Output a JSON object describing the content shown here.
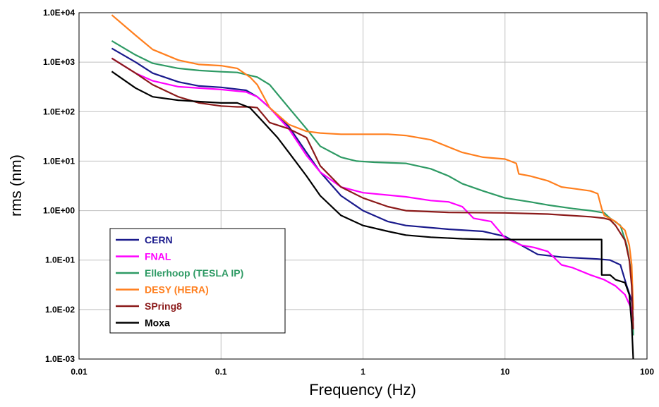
{
  "chart_data": {
    "type": "line",
    "title": "",
    "xlabel": "Frequency (Hz)",
    "ylabel": "rms (nm)",
    "x_scale": "log",
    "y_scale": "log",
    "xlim": [
      0.01,
      100
    ],
    "ylim": [
      0.001,
      10000
    ],
    "grid": true,
    "legend_position": "bottom-left",
    "x_ticks": [
      "0.01",
      "0.1",
      "1",
      "10",
      "100"
    ],
    "y_ticks": [
      "1.0E-03",
      "1.0E-02",
      "1.0E-01",
      "1.0E+00",
      "1.0E+01",
      "1.0E+02",
      "1.0E+03",
      "1.0E+04"
    ],
    "series": [
      {
        "name": "CERN",
        "color": "#1a1a8c",
        "label_color": "#1a1a8c",
        "points": [
          [
            0.017,
            1900
          ],
          [
            0.025,
            1000
          ],
          [
            0.033,
            600
          ],
          [
            0.05,
            400
          ],
          [
            0.07,
            330
          ],
          [
            0.1,
            310
          ],
          [
            0.15,
            270
          ],
          [
            0.18,
            200
          ],
          [
            0.22,
            120
          ],
          [
            0.3,
            50
          ],
          [
            0.4,
            15
          ],
          [
            0.5,
            6
          ],
          [
            0.7,
            2
          ],
          [
            1.0,
            1.0
          ],
          [
            1.5,
            0.6
          ],
          [
            2,
            0.5
          ],
          [
            4,
            0.42
          ],
          [
            7,
            0.38
          ],
          [
            10,
            0.3
          ],
          [
            13,
            0.2
          ],
          [
            17,
            0.13
          ],
          [
            25,
            0.115
          ],
          [
            45,
            0.105
          ],
          [
            55,
            0.1
          ],
          [
            65,
            0.08
          ],
          [
            72,
            0.03
          ],
          [
            78,
            0.015
          ],
          [
            80,
            0.006
          ]
        ]
      },
      {
        "name": "FNAL",
        "color": "#ff00ff",
        "label_color": "#ff00ff",
        "points": [
          [
            0.017,
            1200
          ],
          [
            0.025,
            600
          ],
          [
            0.033,
            420
          ],
          [
            0.05,
            320
          ],
          [
            0.1,
            280
          ],
          [
            0.15,
            250
          ],
          [
            0.18,
            200
          ],
          [
            0.22,
            120
          ],
          [
            0.3,
            45
          ],
          [
            0.4,
            13
          ],
          [
            0.5,
            6
          ],
          [
            0.7,
            3
          ],
          [
            1.0,
            2.3
          ],
          [
            2,
            1.9
          ],
          [
            3,
            1.6
          ],
          [
            4,
            1.5
          ],
          [
            5,
            1.2
          ],
          [
            6,
            0.7
          ],
          [
            8,
            0.6
          ],
          [
            10,
            0.28
          ],
          [
            13,
            0.2
          ],
          [
            16,
            0.18
          ],
          [
            20,
            0.15
          ],
          [
            25,
            0.08
          ],
          [
            30,
            0.07
          ],
          [
            40,
            0.05
          ],
          [
            50,
            0.04
          ],
          [
            60,
            0.03
          ],
          [
            70,
            0.02
          ],
          [
            78,
            0.01
          ],
          [
            80,
            0.006
          ]
        ]
      },
      {
        "name": "Ellerhoop (TESLA IP)",
        "color": "#2e9a64",
        "label_color": "#2e9a64",
        "points": [
          [
            0.017,
            2700
          ],
          [
            0.025,
            1400
          ],
          [
            0.033,
            950
          ],
          [
            0.05,
            750
          ],
          [
            0.07,
            680
          ],
          [
            0.1,
            640
          ],
          [
            0.13,
            620
          ],
          [
            0.18,
            500
          ],
          [
            0.22,
            350
          ],
          [
            0.3,
            120
          ],
          [
            0.4,
            45
          ],
          [
            0.5,
            20
          ],
          [
            0.7,
            12
          ],
          [
            0.9,
            10
          ],
          [
            1.2,
            9.5
          ],
          [
            2,
            9
          ],
          [
            3,
            7
          ],
          [
            4,
            5
          ],
          [
            5,
            3.5
          ],
          [
            7,
            2.5
          ],
          [
            10,
            1.8
          ],
          [
            15,
            1.5
          ],
          [
            20,
            1.3
          ],
          [
            30,
            1.1
          ],
          [
            40,
            1.0
          ],
          [
            50,
            0.9
          ],
          [
            55,
            0.7
          ],
          [
            65,
            0.5
          ],
          [
            72,
            0.2
          ],
          [
            78,
            0.05
          ],
          [
            80,
            0.003
          ]
        ]
      },
      {
        "name": "DESY (HERA)",
        "color": "#ff7f1e",
        "label_color": "#ff7f1e",
        "points": [
          [
            0.017,
            9000
          ],
          [
            0.025,
            3500
          ],
          [
            0.033,
            1800
          ],
          [
            0.05,
            1100
          ],
          [
            0.07,
            900
          ],
          [
            0.1,
            850
          ],
          [
            0.13,
            750
          ],
          [
            0.16,
            500
          ],
          [
            0.18,
            350
          ],
          [
            0.22,
            120
          ],
          [
            0.3,
            55
          ],
          [
            0.4,
            40
          ],
          [
            0.5,
            37
          ],
          [
            0.7,
            35
          ],
          [
            1.0,
            35
          ],
          [
            1.5,
            35
          ],
          [
            2,
            33
          ],
          [
            3,
            27
          ],
          [
            5,
            15
          ],
          [
            7,
            12
          ],
          [
            10,
            11
          ],
          [
            12,
            9
          ],
          [
            12.5,
            5.5
          ],
          [
            15,
            5
          ],
          [
            20,
            4
          ],
          [
            25,
            3
          ],
          [
            30,
            2.8
          ],
          [
            40,
            2.5
          ],
          [
            45,
            2.2
          ],
          [
            48,
            1.1
          ],
          [
            50,
            0.8
          ],
          [
            60,
            0.6
          ],
          [
            70,
            0.4
          ],
          [
            75,
            0.2
          ],
          [
            78,
            0.08
          ],
          [
            80,
            0.01
          ]
        ]
      },
      {
        "name": "SPring8",
        "color": "#8b1a1a",
        "label_color": "#8b1a1a",
        "points": [
          [
            0.017,
            1200
          ],
          [
            0.025,
            600
          ],
          [
            0.033,
            350
          ],
          [
            0.05,
            200
          ],
          [
            0.07,
            150
          ],
          [
            0.1,
            130
          ],
          [
            0.13,
            125
          ],
          [
            0.16,
            125
          ],
          [
            0.18,
            120
          ],
          [
            0.22,
            60
          ],
          [
            0.3,
            45
          ],
          [
            0.4,
            30
          ],
          [
            0.45,
            15
          ],
          [
            0.5,
            8
          ],
          [
            0.7,
            3
          ],
          [
            1.0,
            1.8
          ],
          [
            1.5,
            1.2
          ],
          [
            2,
            1.0
          ],
          [
            4,
            0.92
          ],
          [
            10,
            0.9
          ],
          [
            20,
            0.85
          ],
          [
            40,
            0.75
          ],
          [
            50,
            0.7
          ],
          [
            55,
            0.65
          ],
          [
            60,
            0.5
          ],
          [
            70,
            0.25
          ],
          [
            75,
            0.1
          ],
          [
            78,
            0.03
          ],
          [
            80,
            0.004
          ]
        ]
      },
      {
        "name": "Moxa",
        "color": "#000000",
        "label_color": "#000000",
        "points": [
          [
            0.017,
            650
          ],
          [
            0.025,
            300
          ],
          [
            0.033,
            200
          ],
          [
            0.05,
            170
          ],
          [
            0.07,
            160
          ],
          [
            0.1,
            150
          ],
          [
            0.13,
            150
          ],
          [
            0.16,
            120
          ],
          [
            0.2,
            60
          ],
          [
            0.25,
            30
          ],
          [
            0.3,
            15
          ],
          [
            0.4,
            5
          ],
          [
            0.5,
            2
          ],
          [
            0.7,
            0.8
          ],
          [
            1.0,
            0.5
          ],
          [
            1.5,
            0.38
          ],
          [
            2,
            0.32
          ],
          [
            3,
            0.29
          ],
          [
            5,
            0.27
          ],
          [
            8,
            0.26
          ],
          [
            10,
            0.26
          ],
          [
            20,
            0.26
          ],
          [
            47.9,
            0.26
          ],
          [
            48,
            0.05
          ],
          [
            55,
            0.05
          ],
          [
            60,
            0.04
          ],
          [
            70,
            0.035
          ],
          [
            75,
            0.02
          ],
          [
            78,
            0.005
          ],
          [
            80,
            0.001
          ]
        ]
      }
    ]
  }
}
